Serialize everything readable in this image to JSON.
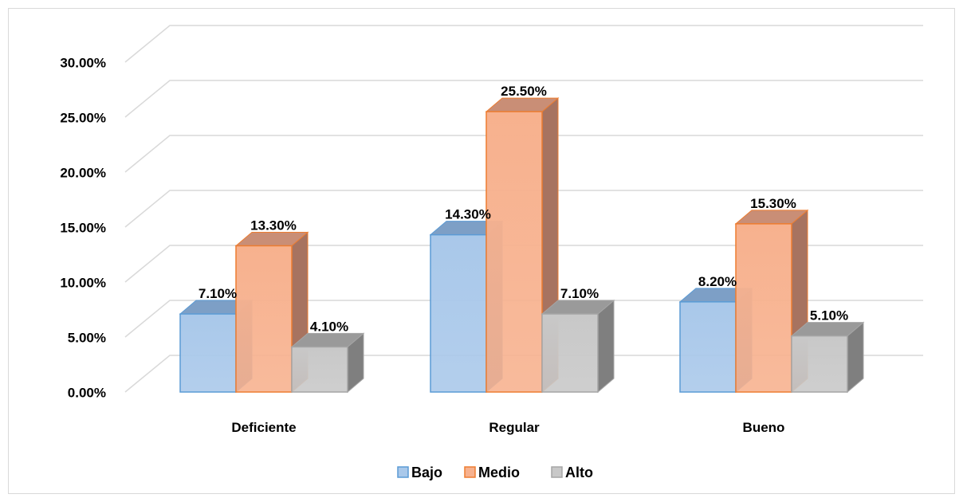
{
  "chart_data": {
    "type": "bar",
    "variant": "3d-clustered",
    "categories": [
      "Deficiente",
      "Regular",
      "Bueno"
    ],
    "series": [
      {
        "name": "Bajo",
        "values": [
          7.1,
          14.3,
          8.2
        ],
        "labels": [
          "7.10%",
          "14.30%",
          "8.20%"
        ]
      },
      {
        "name": "Medio",
        "values": [
          13.3,
          25.5,
          15.3
        ],
        "labels": [
          "13.30%",
          "25.50%",
          "15.30%"
        ]
      },
      {
        "name": "Alto",
        "values": [
          4.1,
          7.1,
          5.1
        ],
        "labels": [
          "4.10%",
          "7.10%",
          "5.10%"
        ]
      }
    ],
    "ylim": [
      0,
      30
    ],
    "yticks": [
      "0.00%",
      "5.00%",
      "10.00%",
      "15.00%",
      "20.00%",
      "25.00%",
      "30.00%"
    ],
    "grid": true,
    "legend": "bottom",
    "title": "",
    "xlabel": "",
    "ylabel": ""
  },
  "colors": {
    "Bajo": {
      "front": "#a9c8ea",
      "side": "#6a8fb8",
      "top": "#7d9fc6",
      "edge": "#5b9bd5"
    },
    "Medio": {
      "front": "#f7b18e",
      "side": "#a77360",
      "top": "#c98e76",
      "edge": "#ed7d31"
    },
    "Alto": {
      "front": "#c8c8c8",
      "side": "#7f7f7f",
      "top": "#9a9a9a",
      "edge": "#a5a5a5"
    },
    "grid": "#d9d9d9"
  }
}
